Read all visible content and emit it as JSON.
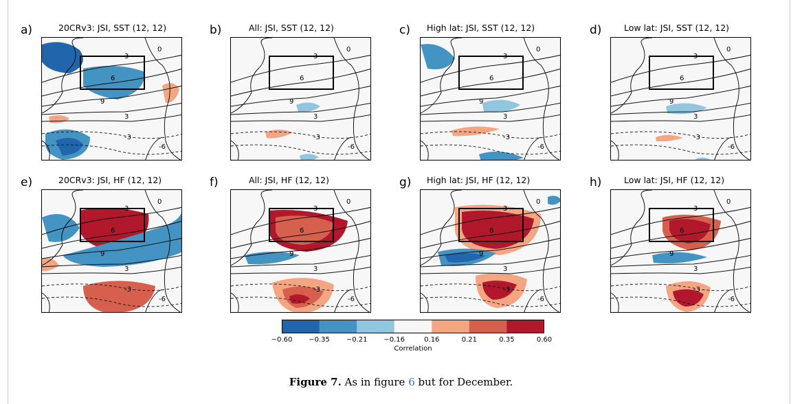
{
  "panels": [
    {
      "letter": "a)",
      "title": "20CRv3:  JSI, SST (12, 12)",
      "kind": "sst20"
    },
    {
      "letter": "b)",
      "title": "All:  JSI, SST (12, 12)",
      "kind": "sstAll"
    },
    {
      "letter": "c)",
      "title": "High lat:  JSI, SST (12, 12)",
      "kind": "sstHigh"
    },
    {
      "letter": "d)",
      "title": "Low lat:  JSI, SST (12, 12)",
      "kind": "sstLow"
    },
    {
      "letter": "e)",
      "title": "20CRv3:  JSI, HF (12, 12)",
      "kind": "hf20"
    },
    {
      "letter": "f)",
      "title": "All:  JSI, HF (12, 12)",
      "kind": "hfAll"
    },
    {
      "letter": "g)",
      "title": "High lat:  JSI, HF (12, 12)",
      "kind": "hfHigh"
    },
    {
      "letter": "h)",
      "title": "Low lat:  JSI, HF (12, 12)",
      "kind": "hfLow"
    }
  ],
  "contour_labels": {
    "zero": "0",
    "three": "3",
    "six": "6",
    "nine": "9",
    "neg3": "-3",
    "neg6": "-6"
  },
  "colorbar": {
    "label": "Correlation",
    "ticks": [
      "−0.60",
      "−0.35",
      "−0.21",
      "−0.16",
      "0.16",
      "0.21",
      "0.35",
      "0.60"
    ],
    "colors": [
      "#2166ac",
      "#4393c3",
      "#92c5de",
      "#f7f7f7",
      "#f4a582",
      "#d6604d",
      "#b2182b"
    ]
  },
  "caption": {
    "label": "Figure 7.",
    "text_before": " As in figure ",
    "ref": "6",
    "text_after": " but for December."
  }
}
